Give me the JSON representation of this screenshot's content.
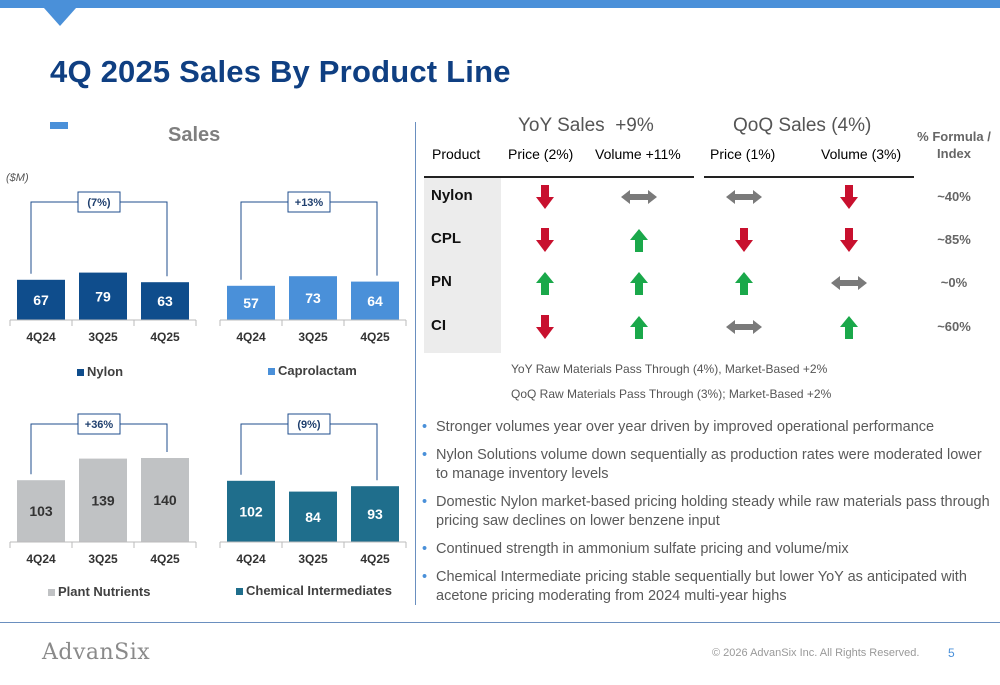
{
  "page": {
    "title": "4Q 2025 Sales By Product Line",
    "page_number": "5",
    "copyright": "© 2026 AdvanSix Inc. All Rights Reserved.",
    "logo_text": "AdvanSix"
  },
  "sales": {
    "title": "Sales",
    "unit": "($M)"
  },
  "colors": {
    "nylon": "#0f4d8c",
    "caprolactam": "#4a90d9",
    "plant_nutrients": "#c0c2c4",
    "chemical_intermediates": "#1f6e8c",
    "accent": "#4a90d9",
    "title": "#0f3f82",
    "arrow_up": "#1aa84a",
    "arrow_down": "#c8102e",
    "arrow_flat": "#7a7a7a"
  },
  "chart_data": [
    {
      "type": "bar",
      "legend": "Nylon",
      "color": "#0f4d8c",
      "categories": [
        "4Q24",
        "3Q25",
        "4Q25"
      ],
      "values": [
        67,
        79,
        63
      ],
      "change_label": "(7%)",
      "label_color": "#ffffff"
    },
    {
      "type": "bar",
      "legend": "Caprolactam",
      "color": "#4a90d9",
      "categories": [
        "4Q24",
        "3Q25",
        "4Q25"
      ],
      "values": [
        57,
        73,
        64
      ],
      "change_label": "+13%",
      "label_color": "#ffffff"
    },
    {
      "type": "bar",
      "legend": "Plant Nutrients",
      "color": "#c0c2c4",
      "categories": [
        "4Q24",
        "3Q25",
        "4Q25"
      ],
      "values": [
        103,
        139,
        140
      ],
      "change_label": "+36%",
      "label_color": "#333333"
    },
    {
      "type": "bar",
      "legend": "Chemical Intermediates",
      "color": "#1f6e8c",
      "categories": [
        "4Q24",
        "3Q25",
        "4Q25"
      ],
      "values": [
        102,
        84,
        93
      ],
      "change_label": "(9%)",
      "label_color": "#ffffff"
    }
  ],
  "table": {
    "yoy_header": "YoY Sales",
    "yoy_value": "+9%",
    "qoq_header": "QoQ Sales",
    "qoq_value": "(4%)",
    "formula_header": "% Formula / Index",
    "columns": [
      "Product",
      "Price (2%)",
      "Volume +11%",
      "Price (1%)",
      "Volume (3%)"
    ],
    "rows": [
      {
        "product": "Nylon",
        "arrows": [
          "down",
          "flat",
          "flat",
          "down"
        ],
        "formula": "~40%"
      },
      {
        "product": "CPL",
        "arrows": [
          "down",
          "up",
          "down",
          "down"
        ],
        "formula": "~85%"
      },
      {
        "product": "PN",
        "arrows": [
          "up",
          "up",
          "up",
          "flat"
        ],
        "formula": "~0%"
      },
      {
        "product": "CI",
        "arrows": [
          "down",
          "up",
          "flat",
          "up"
        ],
        "formula": "~60%"
      }
    ],
    "notes": [
      "YoY Raw Materials Pass Through (4%), Market-Based +2%",
      "QoQ Raw Materials Pass Through (3%); Market-Based +2%"
    ]
  },
  "bullets": [
    "Stronger volumes year over year driven by improved operational performance",
    "Nylon Solutions volume down sequentially as production rates were moderated lower to manage inventory levels",
    "Domestic Nylon market-based pricing holding steady while raw materials pass through pricing saw declines on lower benzene input",
    "Continued strength in ammonium sulfate pricing and volume/mix",
    "Chemical Intermediate pricing stable sequentially but lower YoY as anticipated with acetone pricing moderating from 2024 multi-year highs"
  ]
}
